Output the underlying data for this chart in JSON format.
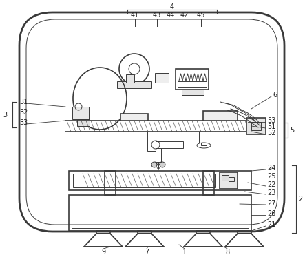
{
  "bg_color": "#ffffff",
  "line_color": "#3a3a3a",
  "label_color": "#222222",
  "fig_width": 4.43,
  "fig_height": 3.73,
  "dpi": 100
}
